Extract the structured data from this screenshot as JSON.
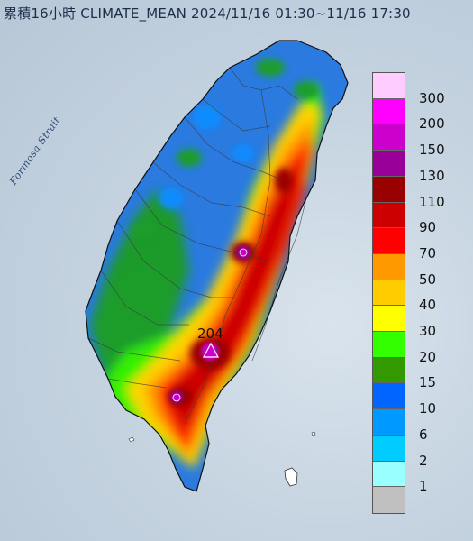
{
  "title": "累積16小時 CLIMATE_MEAN 2024/11/16 01:30~11/16 17:30",
  "strait_label": "Formosa Strait",
  "max_value": "204",
  "legend": [
    {
      "label": "300",
      "color": "#ffccff"
    },
    {
      "label": "200",
      "color": "#ff00ff"
    },
    {
      "label": "150",
      "color": "#cc00cc"
    },
    {
      "label": "130",
      "color": "#990099"
    },
    {
      "label": "110",
      "color": "#990000"
    },
    {
      "label": "90",
      "color": "#cc0000"
    },
    {
      "label": "70",
      "color": "#ff0000"
    },
    {
      "label": "50",
      "color": "#ff9900"
    },
    {
      "label": "40",
      "color": "#ffcc00"
    },
    {
      "label": "30",
      "color": "#ffff00"
    },
    {
      "label": "20",
      "color": "#33ff00"
    },
    {
      "label": "15",
      "color": "#339900"
    },
    {
      "label": "10",
      "color": "#0066ff"
    },
    {
      "label": "6",
      "color": "#0099ff"
    },
    {
      "label": "2",
      "color": "#00ccff"
    },
    {
      "label": "1",
      "color": "#99ffff"
    },
    {
      "label": "",
      "color": "#c0c0c0"
    }
  ]
}
